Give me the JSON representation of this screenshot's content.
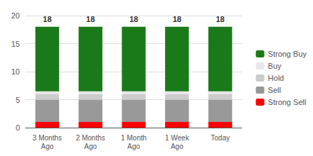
{
  "chart_data": {
    "type": "bar",
    "stacked": true,
    "categories": [
      "3 Months\nAgo",
      "2 Months\nAgo",
      "1 Month\nAgo",
      "1 Week\nAgo",
      "Today"
    ],
    "series": [
      {
        "name": "Strong Sell",
        "color": "#FF0000",
        "values": [
          1,
          1,
          1,
          1,
          1
        ]
      },
      {
        "name": "Sell",
        "color": "#999999",
        "values": [
          4,
          4,
          4,
          4,
          4
        ]
      },
      {
        "name": "Hold",
        "color": "#CCCCCC",
        "values": [
          1,
          1,
          1,
          1,
          1
        ]
      },
      {
        "name": "Buy",
        "color": "#E8E8E8",
        "values": [
          0.5,
          0.5,
          0.5,
          0.5,
          0.5
        ]
      },
      {
        "name": "Strong Buy",
        "color": "#1a7a1a",
        "values": [
          11.5,
          11.5,
          11.5,
          11.5,
          11.5
        ]
      }
    ],
    "totals": [
      18,
      18,
      18,
      18,
      18
    ],
    "ylim": [
      0,
      20
    ],
    "yticks": [
      0,
      5,
      10,
      15,
      20
    ],
    "grid": true,
    "legend": "right"
  }
}
